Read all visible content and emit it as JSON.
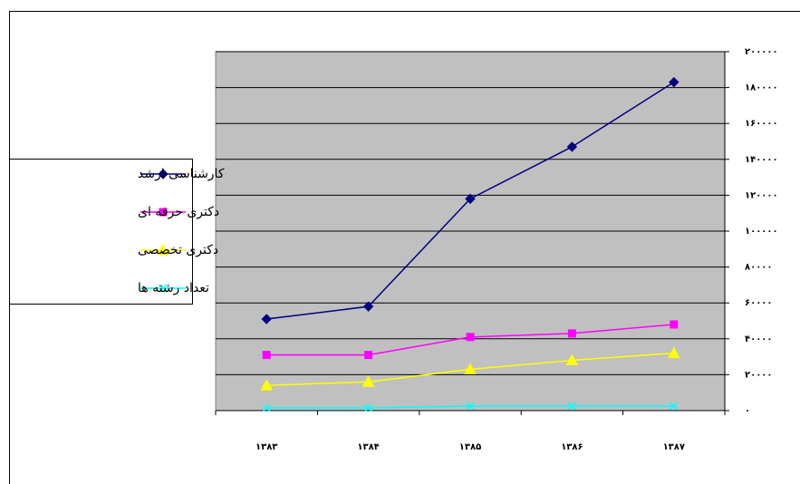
{
  "chart_data": {
    "type": "line",
    "categories": [
      "۱۳۸۳",
      "۱۳۸۴",
      "۱۳۸۵",
      "۱۳۸۶",
      "۱۳۸۷"
    ],
    "series": [
      {
        "name": "کارشناسی ارشد",
        "color": "#000080",
        "marker": "diamond",
        "values": [
          51000,
          58000,
          118000,
          147000,
          183000
        ]
      },
      {
        "name": "دکتری حرفه ای",
        "color": "#ff00ff",
        "marker": "square",
        "values": [
          31000,
          31000,
          41000,
          43000,
          48000
        ]
      },
      {
        "name": "دکتری تخصصی",
        "color": "#ffff00",
        "marker": "triangle",
        "values": [
          14000,
          16000,
          23000,
          28000,
          32000
        ]
      },
      {
        "name": "تعداد رشته ها",
        "color": "#00ffff",
        "marker": "x",
        "values": [
          1500,
          1500,
          2500,
          2500,
          2500
        ]
      }
    ],
    "ylim": [
      0,
      200000
    ],
    "yticks": [
      {
        "value": 0,
        "label": "۰"
      },
      {
        "value": 20000,
        "label": "۲۰۰۰۰"
      },
      {
        "value": 40000,
        "label": "۴۰۰۰۰"
      },
      {
        "value": 60000,
        "label": "۶۰۰۰۰"
      },
      {
        "value": 80000,
        "label": "۸۰۰۰۰"
      },
      {
        "value": 100000,
        "label": "۱۰۰۰۰۰"
      },
      {
        "value": 120000,
        "label": "۱۲۰۰۰۰"
      },
      {
        "value": 140000,
        "label": "۱۴۰۰۰۰"
      },
      {
        "value": 160000,
        "label": "۱۶۰۰۰۰"
      },
      {
        "value": 180000,
        "label": "۱۸۰۰۰۰"
      },
      {
        "value": 200000,
        "label": "۲۰۰۰۰۰"
      }
    ],
    "grid": true,
    "legend": "left",
    "plot_background": "#c0c0c0"
  }
}
